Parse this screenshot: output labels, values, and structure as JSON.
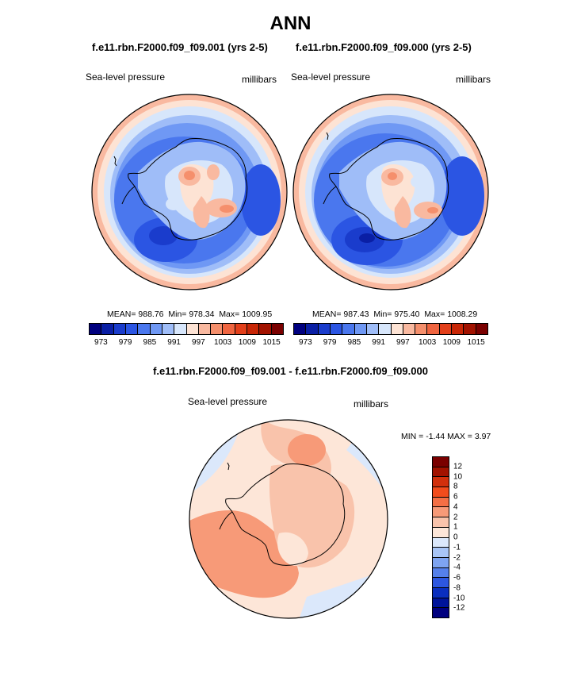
{
  "title": "ANN",
  "panels": [
    {
      "case": "f.e11.rbn.F2000.f09_f09.001 (yrs 2-5)",
      "variable": "Sea-level pressure",
      "units": "millibars",
      "mean": "988.76",
      "min": "978.34",
      "max": "1009.95"
    },
    {
      "case": "f.e11.rbn.F2000.f09_f09.000 (yrs 2-5)",
      "variable": "Sea-level pressure",
      "units": "millibars",
      "mean": "987.43",
      "min": "975.40",
      "max": "1008.29"
    }
  ],
  "labels": {
    "mean": "MEAN=",
    "min": "Min=",
    "max": "Max=",
    "diff_min": "MIN =",
    "diff_max": "MAX ="
  },
  "colorbar": {
    "ticks": [
      "973",
      "979",
      "985",
      "991",
      "997",
      "1003",
      "1009",
      "1015"
    ],
    "colors": [
      "#00007f",
      "#0a1fa5",
      "#1a3ccc",
      "#2b55e3",
      "#4a77ee",
      "#6f98f4",
      "#9fbdf8",
      "#d7e6fb",
      "#fde3d4",
      "#f9b9a0",
      "#f58f6c",
      "#f06540",
      "#e33f1a",
      "#c82606",
      "#a21200",
      "#7a0000"
    ]
  },
  "diff": {
    "title": "f.e11.rbn.F2000.f09_f09.001 - f.e11.rbn.F2000.f09_f09.000",
    "variable": "Sea-level pressure",
    "units": "millibars",
    "min": "-1.44",
    "max": "3.97",
    "ticks": [
      "12",
      "10",
      "8",
      "6",
      "4",
      "2",
      "1",
      "0",
      "-1",
      "-2",
      "-4",
      "-6",
      "-8",
      "-10",
      "-12"
    ],
    "colors": [
      "#7a0000",
      "#a21200",
      "#d2300c",
      "#f24c1c",
      "#f46f45",
      "#f79a78",
      "#f9c3ab",
      "#fde6d8",
      "#dbe8fb",
      "#a8c5f6",
      "#7ea4f1",
      "#5580ea",
      "#2d57e0",
      "#0a2fbf",
      "#00149a",
      "#00007f"
    ]
  }
}
